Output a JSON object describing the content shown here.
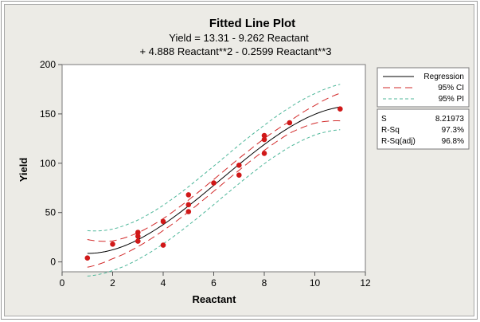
{
  "chart_data": {
    "type": "scatter",
    "title": "Fitted Line Plot",
    "equation_line1": "Yield = 13.31 - 9.262 Reactant",
    "equation_line2": "+ 4.888 Reactant**2 - 0.2599 Reactant**3",
    "xlabel": "Reactant",
    "ylabel": "Yield",
    "xlim": [
      0,
      12
    ],
    "ylim": [
      -10,
      200
    ],
    "x_ticks": [
      "0",
      "2",
      "4",
      "6",
      "8",
      "10",
      "12"
    ],
    "y_ticks": [
      "0",
      "50",
      "100",
      "150",
      "200"
    ],
    "grid": false,
    "model": {
      "b0": 13.31,
      "b1": -9.262,
      "b2": 4.888,
      "b3": -0.2599
    },
    "ci_halfwidth": [
      [
        1,
        14
      ],
      [
        2,
        9
      ],
      [
        3,
        7
      ],
      [
        4,
        6
      ],
      [
        5,
        6
      ],
      [
        6,
        6
      ],
      [
        7,
        6
      ],
      [
        8,
        6
      ],
      [
        9,
        6
      ],
      [
        10,
        9
      ],
      [
        11,
        14
      ]
    ],
    "pi_halfwidth": [
      [
        1,
        23
      ],
      [
        2,
        21
      ],
      [
        3,
        20
      ],
      [
        4,
        19.5
      ],
      [
        5,
        19.5
      ],
      [
        6,
        19.5
      ],
      [
        7,
        19.5
      ],
      [
        8,
        19.5
      ],
      [
        9,
        20
      ],
      [
        10,
        21
      ],
      [
        11,
        23
      ]
    ],
    "points": [
      [
        1,
        4
      ],
      [
        2,
        18
      ],
      [
        3,
        30
      ],
      [
        3,
        26
      ],
      [
        3,
        21
      ],
      [
        4,
        41
      ],
      [
        4,
        17
      ],
      [
        5,
        68
      ],
      [
        5,
        58
      ],
      [
        5,
        51
      ],
      [
        6,
        80
      ],
      [
        7,
        98
      ],
      [
        7,
        88
      ],
      [
        8,
        128
      ],
      [
        8,
        124
      ],
      [
        8,
        110
      ],
      [
        9,
        141
      ],
      [
        11,
        155
      ]
    ],
    "legend": {
      "position": "right",
      "entries": [
        {
          "label": "Regression",
          "color": "#000000",
          "style": "solid"
        },
        {
          "label": "95% CI",
          "color": "#d22a2a",
          "style": "long-dash"
        },
        {
          "label": "95% PI",
          "color": "#4fb79a",
          "style": "short-dash"
        }
      ]
    },
    "stats": [
      {
        "label": "S",
        "value": "8.21973"
      },
      {
        "label": "R-Sq",
        "value": "97.3%"
      },
      {
        "label": "R-Sq(adj)",
        "value": "96.8%"
      }
    ],
    "colors": {
      "regression": "#000000",
      "ci": "#d22a2a",
      "pi": "#4fb79a",
      "points": "#d01818",
      "panel_background": "#ecebe6",
      "plot_background": "#ffffff"
    }
  }
}
